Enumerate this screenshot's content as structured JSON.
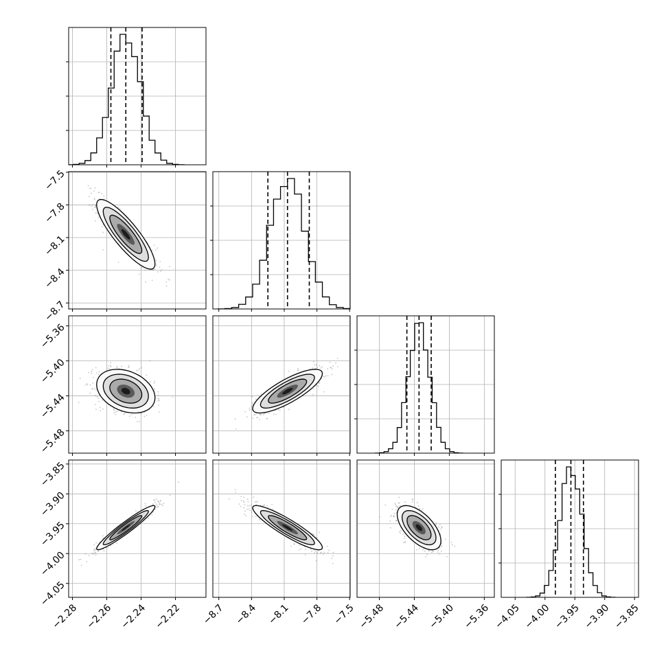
{
  "chart_data": {
    "type": "corner",
    "title": "",
    "params": [
      {
        "ticks": [
          -2.28,
          -2.26,
          -2.24,
          -2.22
        ],
        "tick_labels": [
          "−2.28",
          "−2.26",
          "−2.24",
          "−2.22"
        ],
        "range": [
          -2.2822,
          -2.2022
        ],
        "mean": -2.2489,
        "sd": 0.0085,
        "quantiles": [
          -2.2576,
          -2.2489,
          -2.2394
        ]
      },
      {
        "ticks": [
          -8.7,
          -8.4,
          -8.1,
          -7.8,
          -7.5
        ],
        "tick_labels": [
          "−8.7",
          "−8.4",
          "−8.1",
          "−7.8",
          "−7.5"
        ],
        "range": [
          -8.755,
          -7.495
        ],
        "mean": -8.07,
        "sd": 0.16,
        "quantiles": [
          -8.25,
          -8.07,
          -7.87
        ]
      },
      {
        "ticks": [
          -5.48,
          -5.44,
          -5.4,
          -5.36
        ],
        "tick_labels": [
          "−5.48",
          "−5.44",
          "−5.40",
          "−5.36"
        ],
        "range": [
          -5.5055,
          -5.3485
        ],
        "mean": -5.4346,
        "sd": 0.0125,
        "quantiles": [
          -5.4485,
          -5.4346,
          -5.4207
        ]
      },
      {
        "ticks": [
          -4.05,
          -4.0,
          -3.95,
          -3.9,
          -3.85
        ],
        "tick_labels": [
          "−4.05",
          "−4.00",
          "−3.95",
          "−3.90",
          "−3.85"
        ],
        "range": [
          -4.0733,
          -3.8433
        ],
        "mean": -3.9566,
        "sd": 0.0185,
        "quantiles": [
          -3.9826,
          -3.9566,
          -3.9356
        ]
      }
    ],
    "correlations": {
      "1-0": -0.85,
      "2-0": -0.3,
      "2-1": 0.8,
      "3-0": 0.95,
      "3-1": -0.9,
      "3-2": -0.6
    },
    "histogram_peak_fraction": 0.17,
    "grid": true,
    "colors": {
      "points": "#808080",
      "contour": "#000000",
      "histogram": "#000000",
      "quantile_lines": "#000000"
    }
  }
}
